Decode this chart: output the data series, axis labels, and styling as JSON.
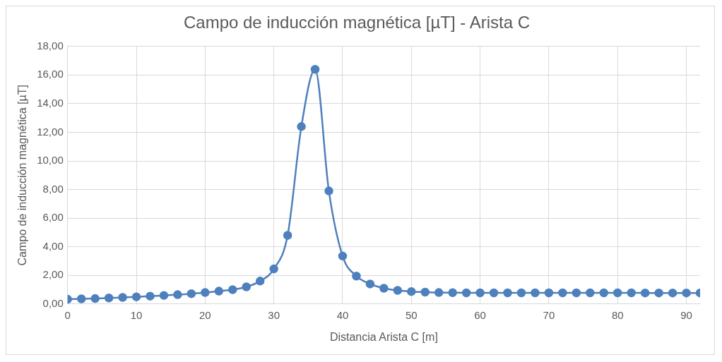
{
  "chart_data": {
    "type": "line",
    "title": "Campo de inducción magnética [µT] - Arista C",
    "xlabel": "Distancia Arista C [m]",
    "ylabel": "Campo de inducción magnética [µT]",
    "x": [
      0,
      2,
      4,
      6,
      8,
      10,
      12,
      14,
      16,
      18,
      20,
      22,
      24,
      26,
      28,
      30,
      32,
      34,
      36,
      38,
      40,
      42,
      44,
      46,
      48,
      50,
      52,
      54,
      56,
      58,
      60,
      62,
      64,
      66,
      68,
      70,
      72,
      74,
      76,
      78,
      80,
      82,
      84,
      86,
      88,
      90,
      92
    ],
    "series": [
      {
        "color": "#4e80bd",
        "values": [
          0.33,
          0.36,
          0.38,
          0.42,
          0.46,
          0.5,
          0.55,
          0.6,
          0.65,
          0.72,
          0.8,
          0.9,
          1.0,
          1.2,
          1.6,
          2.45,
          4.8,
          12.4,
          16.4,
          7.9,
          3.35,
          1.95,
          1.4,
          1.1,
          0.95,
          0.87,
          0.83,
          0.8,
          0.79,
          0.78,
          0.78,
          0.78,
          0.78,
          0.78,
          0.78,
          0.78,
          0.78,
          0.78,
          0.78,
          0.78,
          0.78,
          0.78,
          0.77,
          0.77,
          0.77,
          0.77,
          0.77
        ]
      }
    ],
    "xlim": [
      0,
      92
    ],
    "xticks": [
      0,
      10,
      20,
      30,
      40,
      50,
      60,
      70,
      80,
      90
    ],
    "ylim": [
      0,
      18
    ],
    "yticks": [
      {
        "value": 0,
        "label": "0,00"
      },
      {
        "value": 2,
        "label": "2,00"
      },
      {
        "value": 4,
        "label": "4,00"
      },
      {
        "value": 6,
        "label": "6,00"
      },
      {
        "value": 8,
        "label": "8,00"
      },
      {
        "value": 10,
        "label": "10,00"
      },
      {
        "value": 12,
        "label": "12,00"
      },
      {
        "value": 14,
        "label": "14,00"
      },
      {
        "value": 16,
        "label": "16,00"
      },
      {
        "value": 18,
        "label": "18,00"
      }
    ],
    "grid": true,
    "legend": false,
    "marker": "circle",
    "line_style": "solid"
  }
}
